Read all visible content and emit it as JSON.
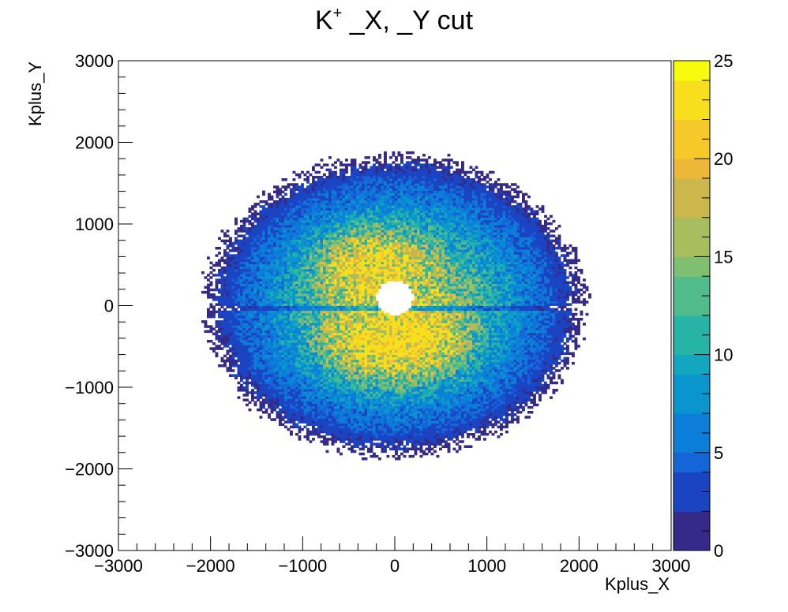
{
  "chart_data": {
    "type": "heatmap",
    "title_main": "K",
    "title_sup": "+",
    "title_rest": " _X, _Y cut",
    "xlabel": "Kplus_X",
    "ylabel": "Kplus_Y",
    "xlim": [
      -3000,
      3000
    ],
    "ylim": [
      -3000,
      3000
    ],
    "x_ticks": [
      -3000,
      -2000,
      -1000,
      0,
      1000,
      2000,
      3000
    ],
    "x_tick_labels": [
      "−3000",
      "−2000",
      "−1000",
      "0",
      "1000",
      "2000",
      "3000"
    ],
    "y_ticks": [
      -3000,
      -2000,
      -1000,
      0,
      1000,
      2000,
      3000
    ],
    "y_tick_labels": [
      "−3000",
      "−2000",
      "−1000",
      "0",
      "1000",
      "2000",
      "3000"
    ],
    "colorbar": {
      "range": [
        0,
        25
      ],
      "ticks": [
        0,
        5,
        10,
        15,
        20,
        25
      ],
      "tick_labels": [
        "0",
        "5",
        "10",
        "15",
        "20",
        "25"
      ],
      "levels": 25
    },
    "palette": [
      "#352a87",
      "#1a44c2",
      "#1565d8",
      "#0a7ed8",
      "#0a95cf",
      "#13a6bf",
      "#27b3a6",
      "#52bb8a",
      "#80bf70",
      "#a8bd5d",
      "#ccb74d",
      "#edb838",
      "#f6c92a",
      "#f8df1e",
      "#f9fb0e"
    ],
    "grid": false,
    "legend": "none",
    "description_of_density": {
      "bin_width": 30,
      "hole_center": [
        0,
        100
      ],
      "hole_radius": 200,
      "peak_regions": [
        [
          -500,
          500
        ],
        [
          0,
          550
        ],
        [
          -400,
          -450
        ],
        [
          0,
          -500
        ],
        [
          400,
          -450
        ]
      ],
      "peak_count": 22
    }
  }
}
